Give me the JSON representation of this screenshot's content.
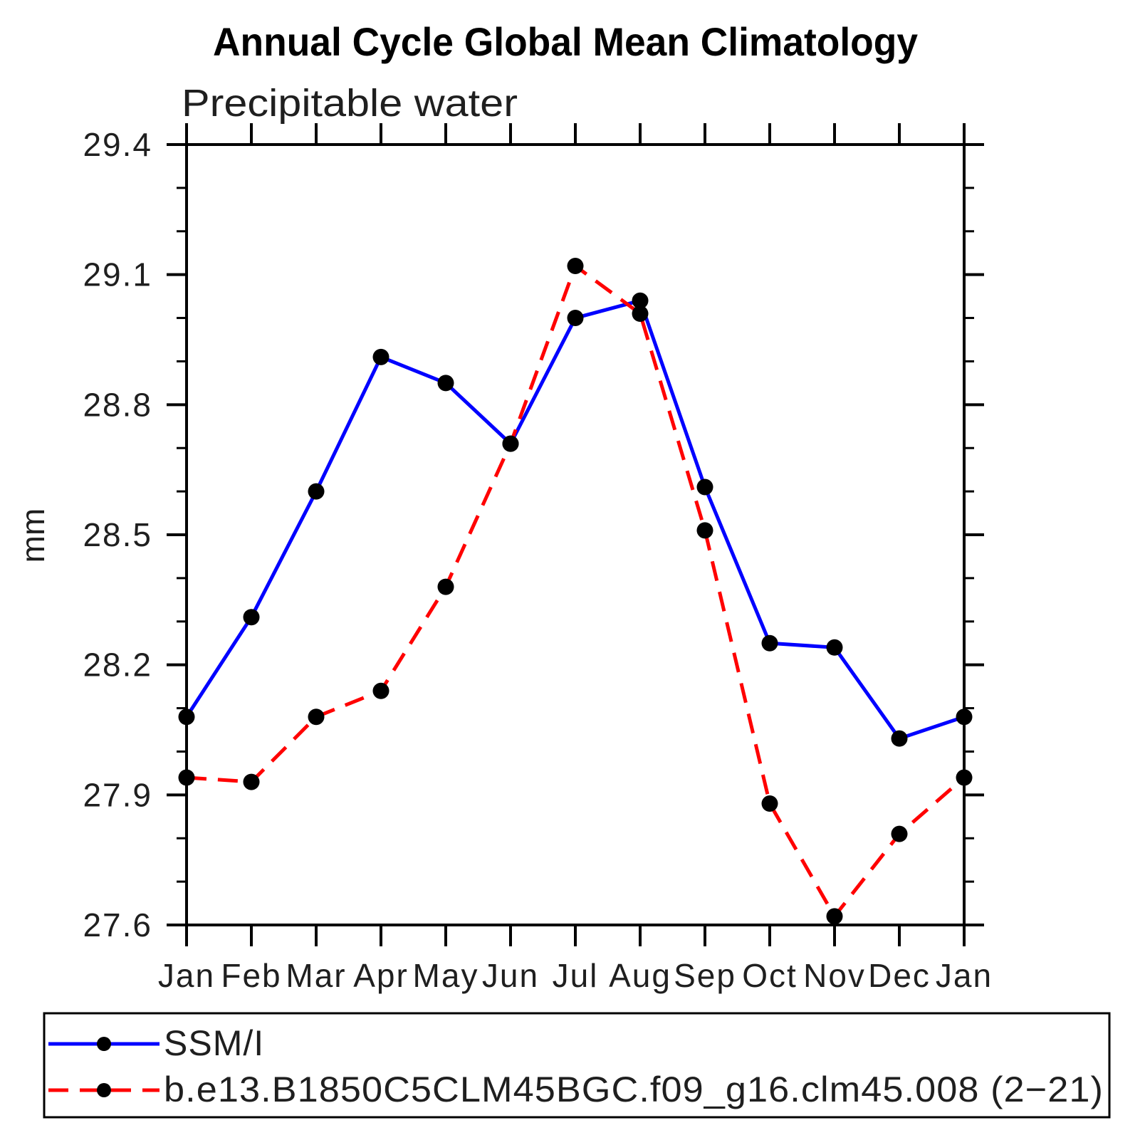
{
  "chart_data": {
    "type": "line",
    "title": "Annual Cycle Global Mean Climatology",
    "subtitle": "Precipitable water",
    "ylabel": "mm",
    "categories": [
      "Jan",
      "Feb",
      "Mar",
      "Apr",
      "May",
      "Jun",
      "Jul",
      "Aug",
      "Sep",
      "Oct",
      "Nov",
      "Dec",
      "Jan"
    ],
    "ylim": [
      27.6,
      29.4
    ],
    "ytick_major_step": 0.3,
    "ytick_minor_step": 0.1,
    "ytick_labels": [
      "27.6",
      "27.9",
      "28.2",
      "28.5",
      "28.8",
      "29.1",
      "29.4"
    ],
    "grid": false,
    "legend_position": "bottom",
    "colors": {
      "axis": "#000000",
      "marker": "#000000",
      "series1": "#0000ff",
      "series2": "#ff0000"
    },
    "series": [
      {
        "name": "SSM/I",
        "color": "#0000ff",
        "line_style": "solid",
        "marker": "dot",
        "values": [
          28.08,
          28.31,
          28.6,
          28.91,
          28.85,
          28.71,
          29.0,
          29.04,
          28.61,
          28.25,
          28.24,
          28.03,
          28.08
        ]
      },
      {
        "name": "b.e13.B1850C5CLM45BGC.f09_g16.clm45.008 (2−21)",
        "color": "#ff0000",
        "line_style": "dashed",
        "marker": "dot",
        "values": [
          27.94,
          27.93,
          28.08,
          28.14,
          28.38,
          28.71,
          29.12,
          29.01,
          28.51,
          27.88,
          27.62,
          27.81,
          27.94
        ]
      }
    ]
  }
}
